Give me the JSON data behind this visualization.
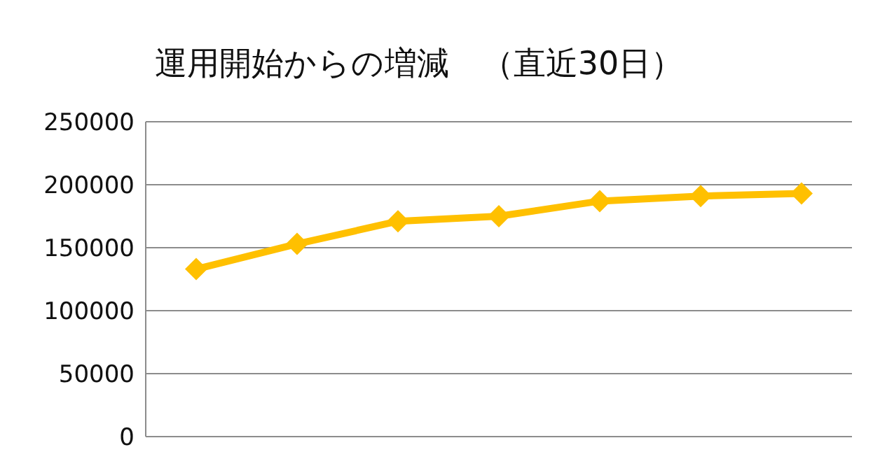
{
  "chart_data": {
    "type": "line",
    "title": "運用開始からの増減　（直近30日）",
    "categories": [
      null,
      null,
      null,
      null,
      null,
      null,
      null
    ],
    "series": [
      {
        "color": "#ffc000",
        "values": [
          133000,
          153000,
          171000,
          175000,
          187000,
          191000,
          193000
        ]
      }
    ],
    "ylim": [
      0,
      250000
    ],
    "yticks": [
      0,
      50000,
      100000,
      150000,
      200000,
      250000
    ],
    "grid": "y",
    "marker": "diamond",
    "line_style": "solid",
    "legend": false
  }
}
